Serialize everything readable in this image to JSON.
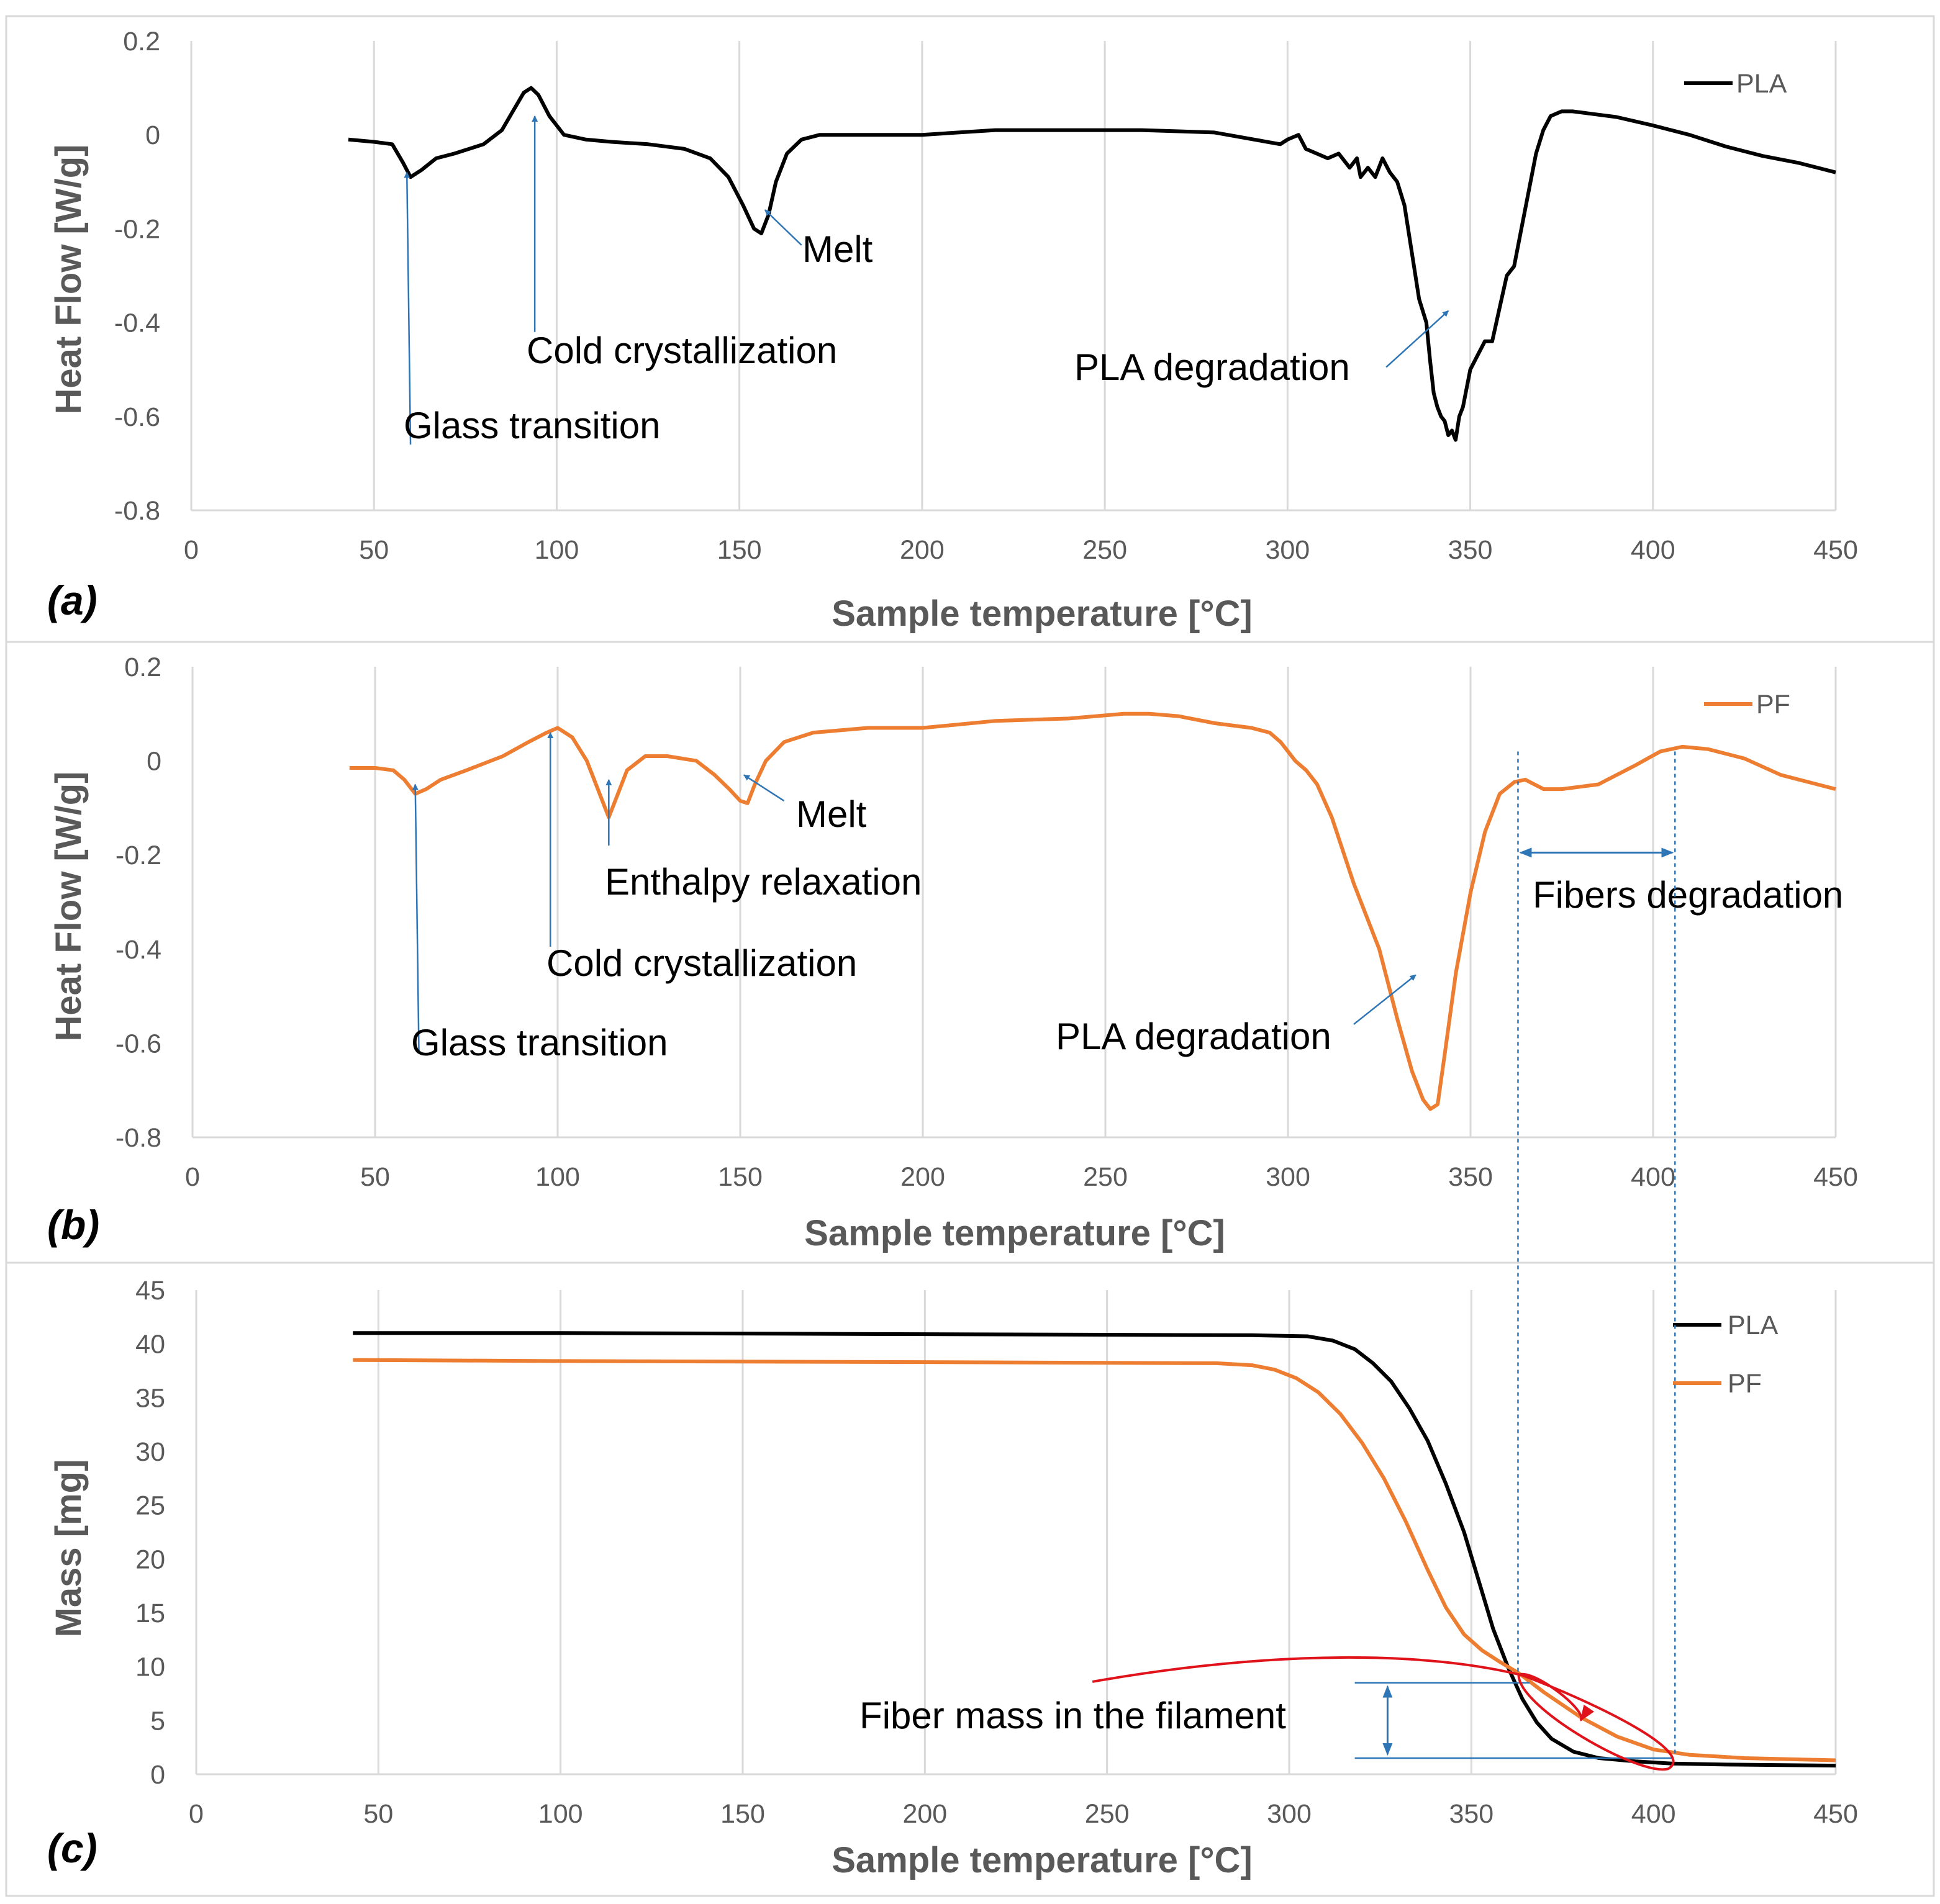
{
  "chart_data": [
    {
      "type": "line",
      "panel": "(a)",
      "xlabel": "Sample temperature [°C]",
      "ylabel": "Heat Flow [W/g]",
      "xlim": [
        0,
        450
      ],
      "ylim": [
        -0.8,
        0.2
      ],
      "xticks": [
        0,
        50,
        100,
        150,
        200,
        250,
        300,
        350,
        400,
        450
      ],
      "yticks": [
        -0.8,
        -0.6,
        -0.4,
        -0.2,
        0,
        0.2
      ],
      "ytick_labels": [
        "-0.8",
        "-0.6",
        "-0.4",
        "-0.2",
        "0",
        "0.2"
      ],
      "grid": "vertical",
      "legend_position": "top-right",
      "series": [
        {
          "name": "PLA",
          "color": "#000000",
          "x": [
            43,
            50,
            55,
            58,
            60,
            63,
            67,
            72,
            80,
            85,
            88,
            91,
            93,
            95,
            98,
            102,
            108,
            115,
            125,
            135,
            142,
            147,
            151,
            154,
            156,
            158,
            160,
            163,
            167,
            172,
            180,
            200,
            220,
            240,
            260,
            280,
            298,
            300,
            303,
            305,
            308,
            311,
            314,
            317,
            319,
            320,
            322,
            324,
            326,
            328,
            330,
            332,
            334,
            336,
            338,
            339,
            340,
            341,
            342,
            343,
            344,
            345,
            346,
            347,
            348,
            350,
            352,
            354,
            356,
            358,
            360,
            362,
            364,
            366,
            368,
            370,
            372,
            375,
            378,
            380,
            383,
            390,
            400,
            410,
            420,
            430,
            440,
            450
          ],
          "y": [
            -0.01,
            -0.015,
            -0.02,
            -0.06,
            -0.09,
            -0.075,
            -0.05,
            -0.04,
            -0.02,
            0.01,
            0.05,
            0.09,
            0.1,
            0.085,
            0.04,
            0.0,
            -0.01,
            -0.015,
            -0.02,
            -0.03,
            -0.05,
            -0.09,
            -0.15,
            -0.2,
            -0.21,
            -0.17,
            -0.1,
            -0.04,
            -0.01,
            0.0,
            0.0,
            0.0,
            0.01,
            0.01,
            0.01,
            0.005,
            -0.02,
            -0.01,
            0.0,
            -0.03,
            -0.04,
            -0.05,
            -0.04,
            -0.07,
            -0.05,
            -0.09,
            -0.07,
            -0.09,
            -0.05,
            -0.08,
            -0.1,
            -0.15,
            -0.25,
            -0.35,
            -0.4,
            -0.48,
            -0.55,
            -0.58,
            -0.6,
            -0.61,
            -0.64,
            -0.63,
            -0.65,
            -0.6,
            -0.58,
            -0.5,
            -0.47,
            -0.44,
            -0.44,
            -0.37,
            -0.3,
            -0.28,
            -0.2,
            -0.12,
            -0.04,
            0.01,
            0.04,
            0.05,
            0.05,
            0.048,
            0.045,
            0.038,
            0.02,
            0.0,
            -0.025,
            -0.045,
            -0.06,
            -0.08
          ]
        }
      ],
      "annotations": [
        {
          "text": "Glass transition",
          "arrow_from": [
            60,
            -0.66
          ],
          "arrow_to": [
            59,
            -0.08
          ]
        },
        {
          "text": "Cold crystallization",
          "arrow_from": [
            94,
            -0.42
          ],
          "arrow_to": [
            94,
            0.04
          ]
        },
        {
          "text": "Melt",
          "arrow_from": [
            167,
            -0.235
          ],
          "arrow_to": [
            157,
            -0.16
          ]
        },
        {
          "text": "PLA degradation",
          "arrow_from": [
            327,
            -0.495
          ],
          "arrow_to": [
            344,
            -0.375
          ]
        }
      ]
    },
    {
      "type": "line",
      "panel": "(b)",
      "xlabel": "Sample temperature [°C]",
      "ylabel": "Heat Flow [W/g]",
      "xlim": [
        0,
        450
      ],
      "ylim": [
        -0.8,
        0.2
      ],
      "xticks": [
        0,
        50,
        100,
        150,
        200,
        250,
        300,
        350,
        400,
        450
      ],
      "yticks": [
        -0.8,
        -0.6,
        -0.4,
        -0.2,
        0,
        0.2
      ],
      "ytick_labels": [
        "-0.8",
        "-0.6",
        "-0.4",
        "-0.2",
        "0",
        "0.2"
      ],
      "grid": "vertical",
      "legend_position": "top-right",
      "series": [
        {
          "name": "PF",
          "color": "#ed7d31",
          "x": [
            43,
            50,
            55,
            58,
            61,
            64,
            68,
            75,
            85,
            92,
            97,
            100,
            104,
            108,
            111,
            113,
            114,
            116,
            119,
            124,
            130,
            138,
            143,
            147,
            150,
            152,
            154,
            157,
            162,
            170,
            185,
            200,
            220,
            240,
            255,
            262,
            270,
            280,
            290,
            295,
            298,
            300,
            302,
            305,
            308,
            312,
            318,
            325,
            330,
            334,
            337,
            339,
            341,
            343,
            346,
            350,
            354,
            358,
            362,
            365,
            370,
            375,
            385,
            395,
            402,
            408,
            415,
            425,
            435,
            450
          ],
          "y": [
            -0.015,
            -0.015,
            -0.02,
            -0.04,
            -0.07,
            -0.06,
            -0.04,
            -0.02,
            0.01,
            0.04,
            0.06,
            0.07,
            0.05,
            0.0,
            -0.06,
            -0.1,
            -0.12,
            -0.08,
            -0.02,
            0.01,
            0.01,
            0.0,
            -0.03,
            -0.06,
            -0.085,
            -0.09,
            -0.05,
            0.0,
            0.04,
            0.06,
            0.07,
            0.07,
            0.085,
            0.09,
            0.1,
            0.1,
            0.095,
            0.08,
            0.07,
            0.06,
            0.04,
            0.02,
            0.0,
            -0.02,
            -0.05,
            -0.12,
            -0.26,
            -0.4,
            -0.55,
            -0.66,
            -0.72,
            -0.74,
            -0.73,
            -0.62,
            -0.45,
            -0.28,
            -0.15,
            -0.07,
            -0.045,
            -0.04,
            -0.06,
            -0.06,
            -0.05,
            -0.01,
            0.02,
            0.03,
            0.025,
            0.005,
            -0.03,
            -0.06
          ]
        }
      ],
      "annotations": [
        {
          "text": "Glass transition",
          "arrow_from": [
            62,
            -0.62
          ],
          "arrow_to": [
            61,
            -0.05
          ]
        },
        {
          "text": "Cold crystallization",
          "arrow_from": [
            98,
            -0.395
          ],
          "arrow_to": [
            98,
            0.06
          ]
        },
        {
          "text": "Enthalpy relaxation",
          "arrow_from": [
            114,
            -0.18
          ],
          "arrow_to": [
            114,
            -0.04
          ]
        },
        {
          "text": "Melt",
          "arrow_from": [
            162,
            -0.085
          ],
          "arrow_to": [
            151,
            -0.03
          ]
        },
        {
          "text": "PLA degradation",
          "arrow_from": [
            318,
            -0.56
          ],
          "arrow_to": [
            335,
            -0.455
          ]
        },
        {
          "text": "Fibers degradation",
          "range": [
            363,
            406
          ],
          "at": -0.195
        }
      ]
    },
    {
      "type": "line",
      "panel": "(c)",
      "xlabel": "Sample temperature [°C]",
      "ylabel": "Mass [mg]",
      "xlim": [
        0,
        450
      ],
      "ylim": [
        0,
        45
      ],
      "xticks": [
        0,
        50,
        100,
        150,
        200,
        250,
        300,
        350,
        400,
        450
      ],
      "yticks": [
        0,
        5,
        10,
        15,
        20,
        25,
        30,
        35,
        40,
        45
      ],
      "ytick_labels": [
        "0",
        "5",
        "10",
        "15",
        "20",
        "25",
        "30",
        "35",
        "40",
        "45"
      ],
      "grid": "vertical",
      "legend_position": "top-right",
      "series": [
        {
          "name": "PLA",
          "color": "#000000",
          "x": [
            43,
            100,
            200,
            290,
            305,
            312,
            318,
            323,
            328,
            333,
            338,
            343,
            348,
            352,
            356,
            360,
            364,
            368,
            372,
            378,
            385,
            395,
            405,
            420,
            450
          ],
          "y": [
            41.0,
            41.0,
            40.9,
            40.8,
            40.7,
            40.3,
            39.5,
            38.2,
            36.5,
            34.0,
            31.0,
            27.0,
            22.5,
            18.0,
            13.5,
            10.0,
            7.0,
            4.8,
            3.3,
            2.1,
            1.5,
            1.2,
            1.0,
            0.9,
            0.8
          ]
        },
        {
          "name": "PF",
          "color": "#ed7d31",
          "x": [
            43,
            100,
            200,
            280,
            290,
            296,
            302,
            308,
            314,
            320,
            326,
            332,
            338,
            343,
            348,
            353,
            358,
            363,
            370,
            380,
            390,
            400,
            410,
            425,
            450
          ],
          "y": [
            38.5,
            38.4,
            38.3,
            38.2,
            38.0,
            37.6,
            36.8,
            35.5,
            33.5,
            30.8,
            27.5,
            23.5,
            19.0,
            15.5,
            13.0,
            11.5,
            10.4,
            9.4,
            7.6,
            5.3,
            3.5,
            2.3,
            1.8,
            1.5,
            1.3
          ]
        }
      ],
      "annotations": [
        {
          "text": "Fiber mass in the filament",
          "range_y": [
            1.5,
            8.5
          ],
          "at_x": 327
        }
      ]
    }
  ]
}
